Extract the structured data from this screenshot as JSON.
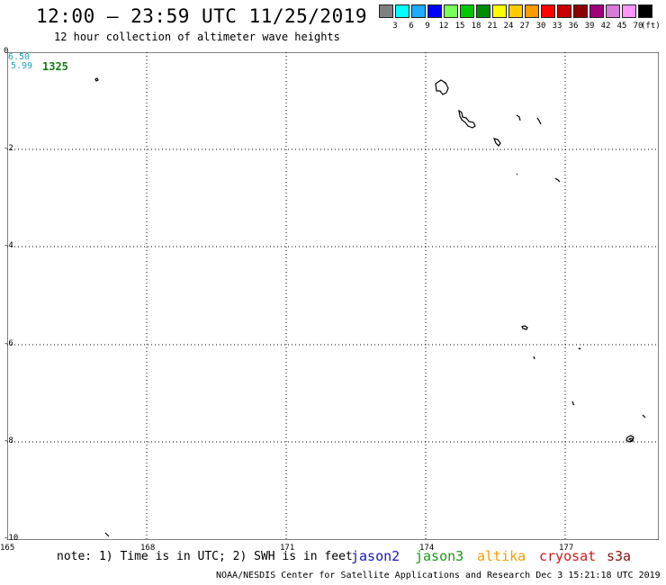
{
  "title": "12:00 – 23:59 UTC 11/25/2019",
  "subtitle": "12 hour collection of altimeter wave heights",
  "legend": {
    "colors": [
      "#808080",
      "#00ffff",
      "#1eaaff",
      "#0000ff",
      "#7aff5a",
      "#00c800",
      "#008c00",
      "#ffff00",
      "#ffcc00",
      "#ff9900",
      "#ff0000",
      "#c80000",
      "#8c0000",
      "#a0007a",
      "#d87ad8",
      "#ff96ff",
      "#000000"
    ],
    "labels": [
      "3",
      "6",
      "9",
      "12",
      "15",
      "18",
      "21",
      "24",
      "27",
      "30",
      "33",
      "36",
      "39",
      "42",
      "45",
      "70"
    ],
    "unit": "(ft)"
  },
  "axes": {
    "y_labels": [
      "0",
      "-2",
      "-4",
      "-6",
      "-8",
      "-10"
    ],
    "x_labels": [
      "165",
      "168",
      "171",
      "174",
      "177"
    ],
    "lon_range": [
      165,
      179
    ],
    "lat_range": [
      -10,
      0
    ]
  },
  "count_stats": {
    "line1": "6.50",
    "line2": "5.99",
    "count": "1325"
  },
  "note": "note: 1) Time is in UTC; 2) SWH is in feet",
  "satellites": [
    {
      "name": "jason2",
      "color": "#1515c8"
    },
    {
      "name": "jason3",
      "color": "#169a16"
    },
    {
      "name": "altika",
      "color": "#ff9a00"
    },
    {
      "name": "cryosat",
      "color": "#d01818"
    },
    {
      "name": "s3a",
      "color": "#8a1010"
    }
  ],
  "footer": "NOAA/NESDIS Center for Satellite Applications and Research   Dec  3 15:21:18 UTC 2019"
}
